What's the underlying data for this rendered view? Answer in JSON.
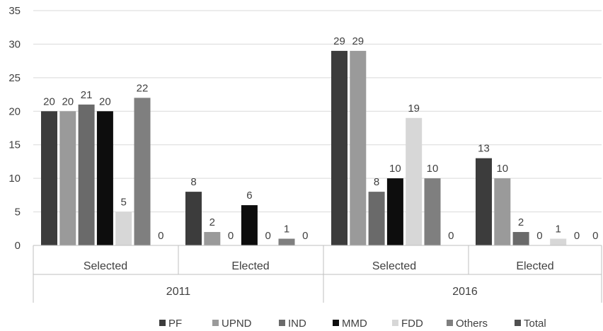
{
  "chart_data": {
    "type": "bar",
    "title": "",
    "xlabel": "",
    "ylabel": "",
    "ylim": [
      0,
      35
    ],
    "yticks": [
      0,
      5,
      10,
      15,
      20,
      25,
      30,
      35
    ],
    "grid": true,
    "legend_position": "bottom",
    "groups": [
      {
        "label": "2011",
        "categories": [
          "Selected",
          "Elected"
        ]
      },
      {
        "label": "2016",
        "categories": [
          "Selected",
          "Elected"
        ]
      }
    ],
    "categories": [
      "2011 Selected",
      "2011 Elected",
      "2016 Selected",
      "2016 Elected"
    ],
    "series": [
      {
        "name": "PF",
        "color": "#3c3c3c",
        "values": [
          20,
          8,
          29,
          13
        ]
      },
      {
        "name": "UPND",
        "color": "#9a9a9a",
        "values": [
          20,
          2,
          29,
          10
        ]
      },
      {
        "name": "IND",
        "color": "#6a6a6a",
        "values": [
          21,
          0,
          8,
          2
        ]
      },
      {
        "name": "MMD",
        "color": "#0d0d0d",
        "values": [
          20,
          6,
          10,
          0
        ]
      },
      {
        "name": "FDD",
        "color": "#d7d7d7",
        "values": [
          5,
          0,
          19,
          1
        ]
      },
      {
        "name": "Others",
        "color": "#7f7f7f",
        "values": [
          22,
          1,
          10,
          0
        ]
      },
      {
        "name": "Total",
        "color": "#505050",
        "values": [
          0,
          0,
          0,
          0
        ]
      }
    ]
  }
}
